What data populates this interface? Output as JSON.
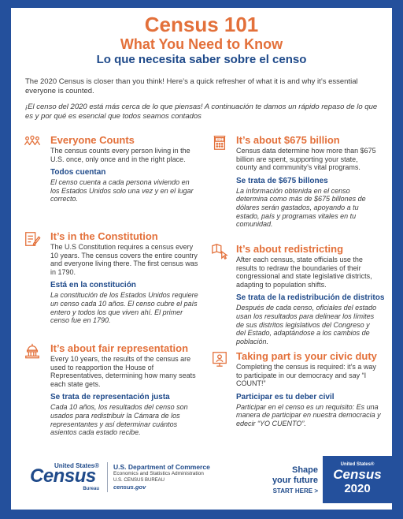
{
  "header": {
    "title": "Census 101",
    "subtitle_en": "What You Need to Know",
    "subtitle_es": "Lo que necesita saber sobre el censo"
  },
  "intro": {
    "en": "The 2020 Census is closer than you think! Here’s a quick refresher of what it is and why it’s essential everyone is counted.",
    "es": "¡El censo del 2020 está más cerca de lo que piensas! A continuación te damos un rápido repaso de lo que es y por qué es esencial que todos seamos contados"
  },
  "sections": [
    {
      "icon": "people-icon",
      "heading_en": "Everyone Counts",
      "body_en": "The census counts every person living in the U.S. once, only once and in the right place.",
      "heading_es": "Todos cuentan",
      "body_es": "El censo cuenta a cada persona viviendo en los Estados Unidos solo una vez y en el lugar correcto."
    },
    {
      "icon": "document-pencil-icon",
      "heading_en": "It’s in the Constitution",
      "body_en": "The U.S Constitution requires a census every 10 years. The census covers the entire country and everyone living there. The first census was in 1790.",
      "heading_es": "Está en la constitución",
      "body_es": "La constitución de los Estados Unidos requiere un censo cada 10 años. El censo cubre el país entero y todos los que viven ahí. El primer censo fue en 1790."
    },
    {
      "icon": "capitol-icon",
      "heading_en": "It’s about fair representation",
      "body_en": "Every 10 years, the results of the census are used to reapportion the House of Representatives, determining how many seats each state gets.",
      "heading_es": "Se trata de representación justa",
      "body_es": "Cada 10 años, los resultados del censo son usados para redistribuir la Cámara de los representantes y así determinar cuántos asientos cada estado recibe."
    },
    {
      "icon": "calculator-icon",
      "heading_en": "It’s about $675 billion",
      "body_en": "Census data determine how more than $675 billion are spent, supporting your state, county and community’s vital programs.",
      "heading_es": "Se trata de $675 billones",
      "body_es": "La información obtenida en el censo determina como más de $675 billones de dólares serán gastados, apoyando a tu estado, país y programas vitales en tu comunidad."
    },
    {
      "icon": "map-pointer-icon",
      "heading_en": "It’s about redistricting",
      "body_en": "After each census, state officials use the results to redraw the boundaries of their congressional and state legislative districts, adapting to population shifts.",
      "heading_es": "Se trata de la redistribución de distritos",
      "body_es": "Después de cada censo, oficiales del estado usan los resultados para delinear los límites de sus distritos legislativos del Congreso y del Estado, adaptándose a los cambios de población."
    },
    {
      "icon": "person-id-icon",
      "heading_en": "Taking part is your civic duty",
      "body_en": "Completing the census is required: it’s a way to participate in our democracy and say “I COUNT!”",
      "heading_es": "Participar es tu deber civil",
      "body_es": "Participar en el censo es un requisito: Es una manera de participar en nuestra democracia y edecir “YO CUENTO”."
    }
  ],
  "footer": {
    "logo_top": "United States®",
    "logo_main": "Census",
    "logo_bureau": "Bureau",
    "dept_line1": "U.S. Department of Commerce",
    "dept_line2": "Economics and Statistics Administration",
    "dept_line3": "U.S. CENSUS BUREAU",
    "dept_line4": "census.gov",
    "shape_line1": "Shape",
    "shape_line2": "your future",
    "shape_cta": "START HERE >",
    "badge_top": "United States®",
    "badge_main": "Census",
    "badge_year": "2020"
  },
  "colors": {
    "border": "#24509c",
    "orange": "#e3703a",
    "navy": "#1f4a8a"
  }
}
